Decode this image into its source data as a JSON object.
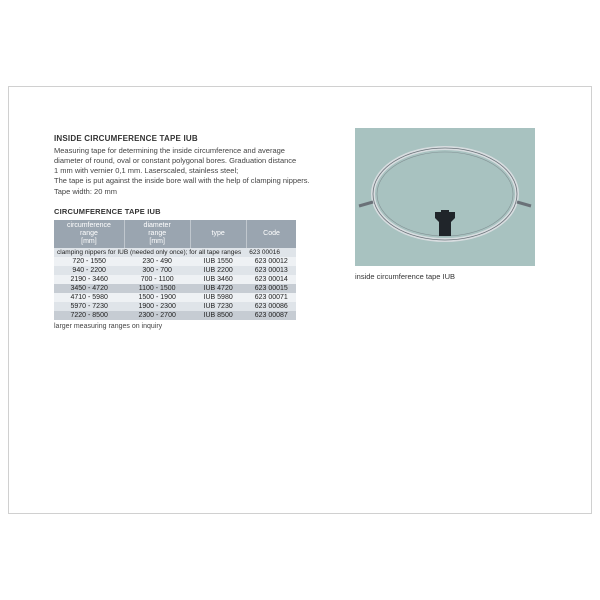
{
  "title": "INSIDE CIRCUMFERENCE TAPE IUB",
  "description_lines": [
    "Measuring tape for determining the inside circumference and average",
    "diameter of round, oval or constant polygonal bores. Graduation distance",
    "1 mm with vernier 0,1 mm. Laserscaled, stainless steel;",
    "The tape is put against the inside bore wall with the help of clamping nippers.",
    "Tape width: 20 mm"
  ],
  "table_heading": "CIRCUMFERENCE TAPE IUB",
  "columns": {
    "c1a": "circumference",
    "c1b": "range",
    "c1c": "[mm]",
    "c2a": "diameter",
    "c2b": "range",
    "c2c": "[mm]",
    "c3": "type",
    "c4": "Code"
  },
  "note_row": {
    "text": "clamping nippers for IUB (needed only once); for all tape ranges",
    "code": "623  00016"
  },
  "rows": [
    {
      "circ": "720  - 1550",
      "diam": "230  -  490",
      "type": "IUB  1550",
      "code": "623  00012",
      "shade": "row-even"
    },
    {
      "circ": "940  - 2200",
      "diam": "300  -  700",
      "type": "IUB  2200",
      "code": "623  00013",
      "shade": "row-odd"
    },
    {
      "circ": "2190  - 3460",
      "diam": "700  - 1100",
      "type": "IUB  3460",
      "code": "623  00014",
      "shade": "row-even"
    },
    {
      "circ": "3450  - 4720",
      "diam": "1100  - 1500",
      "type": "IUB  4720",
      "code": "623  00015",
      "shade": "row-dark"
    },
    {
      "circ": "4710  - 5980",
      "diam": "1500  - 1900",
      "type": "IUB  5980",
      "code": "623  00071",
      "shade": "row-even"
    },
    {
      "circ": "5970  - 7230",
      "diam": "1900  - 2300",
      "type": "IUB  7230",
      "code": "623  00086",
      "shade": "row-odd"
    },
    {
      "circ": "7220  - 8500",
      "diam": "2300  - 2700",
      "type": "IUB  8500",
      "code": "623  00087",
      "shade": "row-dark"
    }
  ],
  "footnote": "larger measuring ranges on inquiry",
  "photo_caption": "inside circumference tape IUB",
  "colors": {
    "header_bg": "#9aa5b0",
    "row_odd": "#dfe4e9",
    "row_even": "#eef1f4",
    "row_dark": "#c6ccd3",
    "photo_bg": "#a8c2c0",
    "frame_border": "#d0d0d0",
    "tape_stroke": "#6a7178",
    "tape_fill": "#d8dde0",
    "clip_fill": "#20252a"
  }
}
